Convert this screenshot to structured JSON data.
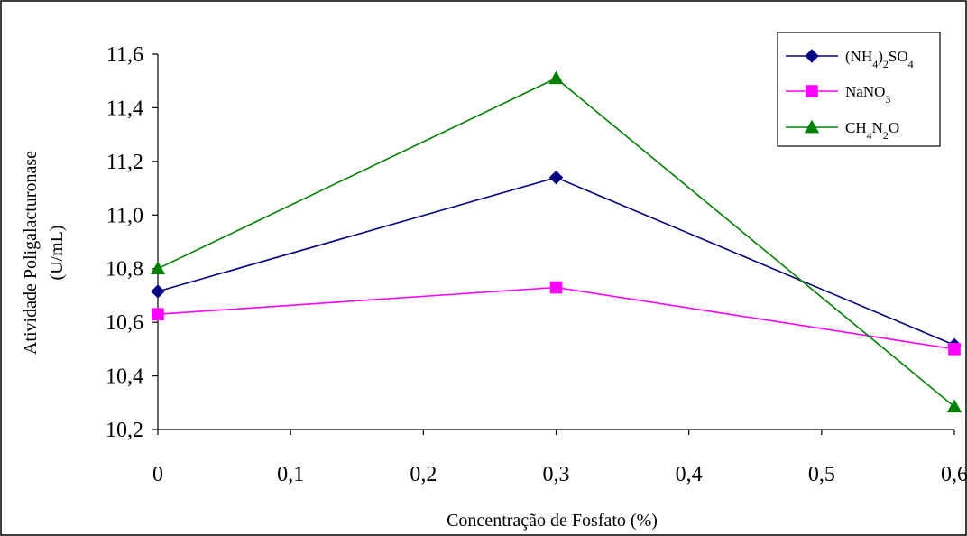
{
  "chart_data": {
    "type": "line",
    "title": "",
    "xlabel": "Concentração de Fosfato (%)",
    "ylabel_line1": "Atividade Poligalacturonase",
    "ylabel_line2": "(U/mL)",
    "x": [
      0,
      0.3,
      0.6
    ],
    "x_ticks": [
      "0",
      "0,1",
      "0,2",
      "0,3",
      "0,4",
      "0,5",
      "0,6"
    ],
    "x_tick_values": [
      0,
      0.1,
      0.2,
      0.3,
      0.4,
      0.5,
      0.6
    ],
    "y_ticks": [
      "10,2",
      "10,4",
      "10,6",
      "10,8",
      "11,0",
      "11,2",
      "11,4",
      "11,6"
    ],
    "y_tick_values": [
      10.2,
      10.4,
      10.6,
      10.8,
      11.0,
      11.2,
      11.4,
      11.6
    ],
    "xlim": [
      0,
      0.6
    ],
    "ylim": [
      10.2,
      11.6
    ],
    "grid": false,
    "legend_position": "top-right",
    "series": [
      {
        "name": "(NH4)2SO4",
        "parts": [
          [
            "(NH",
            ""
          ],
          [
            "4",
            "sub"
          ],
          [
            ")",
            ""
          ],
          [
            "2",
            "sub"
          ],
          [
            "SO",
            ""
          ],
          [
            "4",
            "sub"
          ]
        ],
        "values": [
          10.715,
          11.14,
          10.515
        ],
        "color": "#000080",
        "marker": "diamond"
      },
      {
        "name": "NaNO3",
        "parts": [
          [
            "NaNO",
            ""
          ],
          [
            "3",
            "sub"
          ]
        ],
        "values": [
          10.63,
          10.73,
          10.5
        ],
        "color": "#ff00ff",
        "marker": "square"
      },
      {
        "name": "CH4N2O",
        "parts": [
          [
            "CH",
            ""
          ],
          [
            "4",
            "sub"
          ],
          [
            "N",
            ""
          ],
          [
            "2",
            "sub"
          ],
          [
            "O",
            ""
          ]
        ],
        "values": [
          10.8,
          11.51,
          10.285
        ],
        "color": "#008000",
        "marker": "triangle"
      }
    ]
  }
}
